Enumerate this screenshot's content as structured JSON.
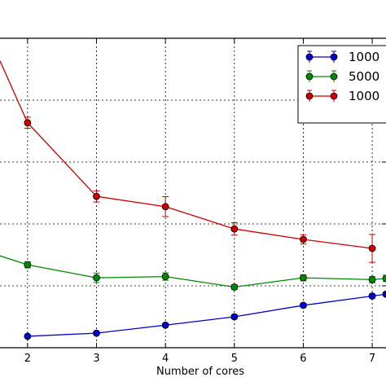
{
  "chart_data": {
    "type": "line",
    "xlabel": "Number of cores",
    "ylabel": "",
    "title": "",
    "xlim": [
      1.6,
      7.2
    ],
    "ylim": [
      0,
      1
    ],
    "x_ticks": [
      2,
      3,
      4,
      5,
      6,
      7
    ],
    "grid": true,
    "legend_position": "top-right",
    "series": [
      {
        "name": "1000",
        "color": "#0000cc",
        "x": [
          2,
          3,
          4,
          5,
          6,
          7,
          7.2
        ],
        "y": [
          0.037,
          0.047,
          0.073,
          0.1,
          0.137,
          0.167,
          0.173
        ],
        "err": [
          0.004,
          0.005,
          0.005,
          0.006,
          0.006,
          0.006,
          0.006
        ]
      },
      {
        "name": "5000",
        "color": "#008800",
        "x": [
          1.6,
          2,
          3,
          4,
          5,
          6,
          7,
          7.2
        ],
        "y": [
          0.297,
          0.268,
          0.226,
          0.23,
          0.196,
          0.226,
          0.22,
          0.224
        ],
        "err": [
          0,
          0.01,
          0.015,
          0.012,
          0.008,
          0.01,
          0.01,
          0.01
        ]
      },
      {
        "name": "1000",
        "color": "#cc0000",
        "x": [
          1.6,
          2,
          3,
          4,
          5,
          6,
          7
        ],
        "y": [
          0.927,
          0.727,
          0.489,
          0.456,
          0.384,
          0.35,
          0.321
        ],
        "err": [
          0,
          0.018,
          0.018,
          0.032,
          0.02,
          0.015,
          0.045
        ]
      }
    ],
    "legend": [
      "1000",
      "5000",
      "1000"
    ]
  }
}
